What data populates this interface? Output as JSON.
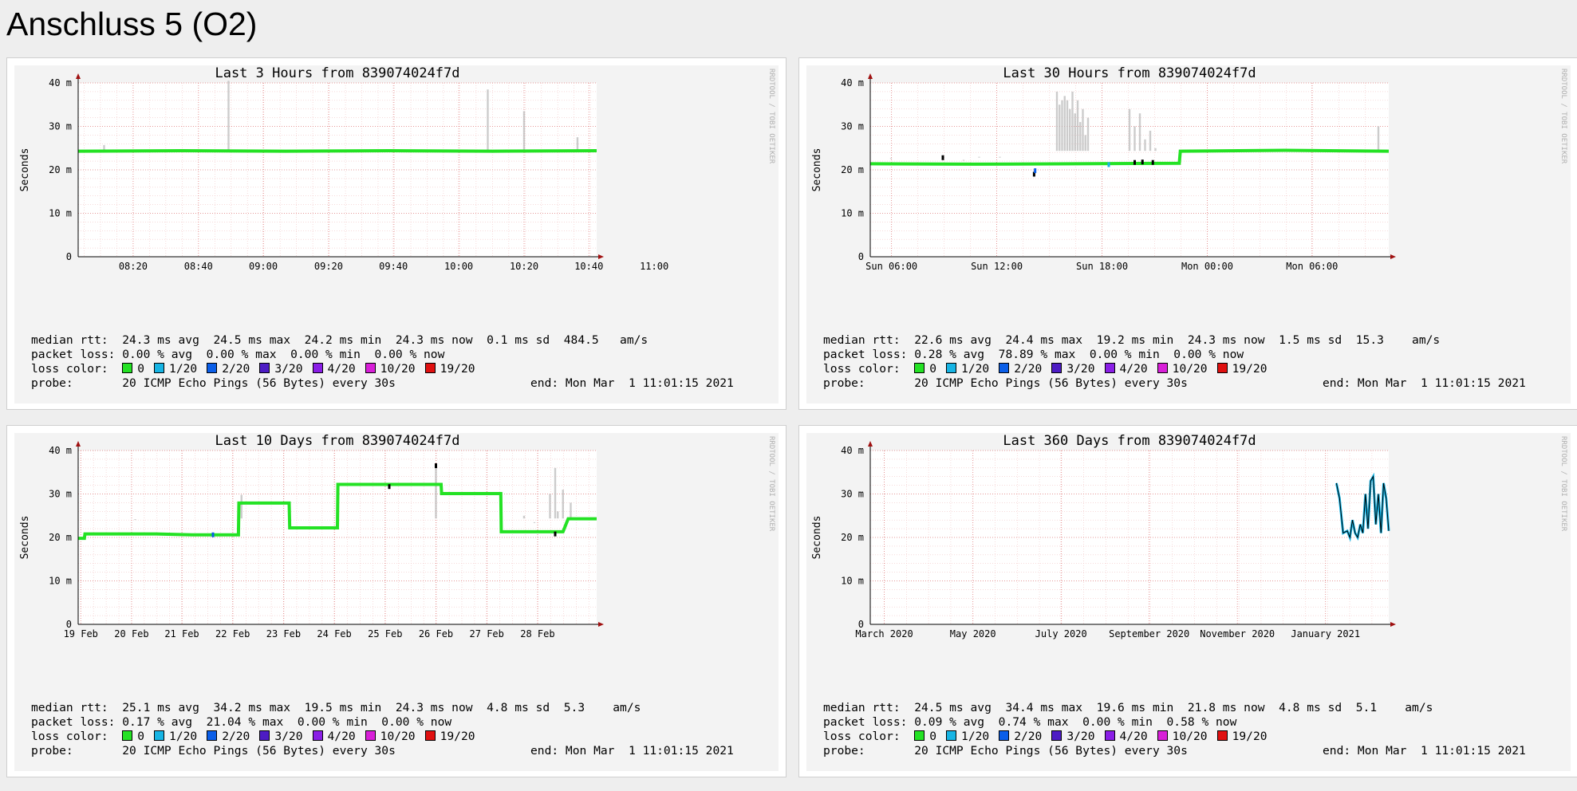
{
  "page": {
    "title": "Anschluss 5 (O2)"
  },
  "watermark": "RRDTOOL / TOBI OETIKER",
  "loss_colors": [
    {
      "label": "0",
      "color": "#24e224"
    },
    {
      "label": "1/20",
      "color": "#16b4e4"
    },
    {
      "label": "2/20",
      "color": "#0a5ee8"
    },
    {
      "label": "3/20",
      "color": "#4d1cc4"
    },
    {
      "label": "4/20",
      "color": "#8a1ee6"
    },
    {
      "label": "10/20",
      "color": "#d81fd8"
    },
    {
      "label": "19/20",
      "color": "#e01010"
    }
  ],
  "chart_data": [
    {
      "id": "3h",
      "type": "line",
      "title": "Last 3 Hours from 839074024f7d",
      "ylabel": "Seconds",
      "yticks": [
        "0",
        "10 m",
        "20 m",
        "30 m",
        "40 m"
      ],
      "ylim": [
        0,
        0.04
      ],
      "xticks": [
        "08:20",
        "08:40",
        "09:00",
        "09:20",
        "09:40",
        "10:00",
        "10:20",
        "10:40",
        "11:00"
      ],
      "x_tick_pos": [
        0.106,
        0.232,
        0.357,
        0.483,
        0.608,
        0.734,
        0.86,
        0.985,
        1.111
      ],
      "median_ms": [
        [
          0,
          24.3
        ],
        [
          0.2,
          24.4
        ],
        [
          0.4,
          24.3
        ],
        [
          0.6,
          24.4
        ],
        [
          0.8,
          24.3
        ],
        [
          1.0,
          24.4
        ]
      ],
      "spikes_ms": [
        [
          0.29,
          40.5
        ],
        [
          0.79,
          38.5
        ],
        [
          0.86,
          33.5
        ],
        [
          0.963,
          27.5
        ],
        [
          0.05,
          25.7
        ]
      ],
      "dots": [],
      "stats": {
        "median_rtt": "median rtt:  24.3 ms avg  24.5 ms max  24.2 ms min  24.3 ms now  0.1 ms sd  484.5   am/s",
        "packet_loss": "packet loss: 0.00 % avg  0.00 % max  0.00 % min  0.00 % now",
        "loss_color_label": "loss color:",
        "probe": "probe:       20 ICMP Echo Pings (56 Bytes) every 30s",
        "end": "end: Mon Mar  1 11:01:15 2021"
      }
    },
    {
      "id": "30h",
      "type": "line",
      "title": "Last 30 Hours from 839074024f7d",
      "ylabel": "Seconds",
      "yticks": [
        "0",
        "10 m",
        "20 m",
        "30 m",
        "40 m"
      ],
      "ylim": [
        0,
        0.04
      ],
      "xticks": [
        "Sun 06:00",
        "Sun 12:00",
        "Sun 18:00",
        "Mon 00:00",
        "Mon 06:00"
      ],
      "x_tick_pos": [
        0.041,
        0.244,
        0.447,
        0.65,
        0.852
      ],
      "median_ms": [
        [
          0,
          21.4
        ],
        [
          0.2,
          21.3
        ],
        [
          0.4,
          21.4
        ],
        [
          0.596,
          21.5
        ],
        [
          0.598,
          24.3
        ],
        [
          0.8,
          24.5
        ],
        [
          1.0,
          24.3
        ]
      ],
      "spikes_ms": [
        [
          0.36,
          38
        ],
        [
          0.365,
          35
        ],
        [
          0.37,
          36
        ],
        [
          0.375,
          37
        ],
        [
          0.38,
          36
        ],
        [
          0.385,
          34
        ],
        [
          0.39,
          38
        ],
        [
          0.395,
          33
        ],
        [
          0.4,
          36
        ],
        [
          0.405,
          31
        ],
        [
          0.41,
          34
        ],
        [
          0.415,
          28
        ],
        [
          0.42,
          32
        ],
        [
          0.5,
          34
        ],
        [
          0.51,
          30
        ],
        [
          0.52,
          33
        ],
        [
          0.53,
          27
        ],
        [
          0.54,
          29
        ],
        [
          0.55,
          25
        ],
        [
          0.21,
          23
        ],
        [
          0.04,
          22.7
        ],
        [
          0.18,
          22.3
        ],
        [
          0.14,
          23
        ],
        [
          0.25,
          23
        ],
        [
          0.98,
          30
        ]
      ],
      "dots": [
        [
          0.316,
          19.0,
          "#000000"
        ],
        [
          0.318,
          19.8,
          "#0a5ee8"
        ],
        [
          0.46,
          21.2,
          "#16b4e4"
        ],
        [
          0.51,
          21.7,
          "#000000"
        ],
        [
          0.525,
          21.8,
          "#000000"
        ],
        [
          0.545,
          21.7,
          "#000000"
        ],
        [
          0.14,
          22.8,
          "#000000"
        ]
      ],
      "stats": {
        "median_rtt": "median rtt:  22.6 ms avg  24.4 ms max  19.2 ms min  24.3 ms now  1.5 ms sd  15.3    am/s",
        "packet_loss": "packet loss: 0.28 % avg  78.89 % max  0.00 % min  0.00 % now",
        "loss_color_label": "loss color:",
        "probe": "probe:       20 ICMP Echo Pings (56 Bytes) every 30s",
        "end": "end: Mon Mar  1 11:01:15 2021"
      }
    },
    {
      "id": "10d",
      "type": "line",
      "title": "Last 10 Days from 839074024f7d",
      "ylabel": "Seconds",
      "yticks": [
        "0",
        "10 m",
        "20 m",
        "30 m",
        "40 m"
      ],
      "ylim": [
        0,
        0.04
      ],
      "xticks": [
        "19 Feb",
        "20 Feb",
        "21 Feb",
        "22 Feb",
        "23 Feb",
        "24 Feb",
        "25 Feb",
        "26 Feb",
        "27 Feb",
        "28 Feb"
      ],
      "x_tick_pos": [
        0.005,
        0.103,
        0.2,
        0.298,
        0.396,
        0.494,
        0.592,
        0.69,
        0.788,
        0.886
      ],
      "median_ms": [
        [
          0,
          19.8
        ],
        [
          0.012,
          19.8
        ],
        [
          0.013,
          20.8
        ],
        [
          0.15,
          20.8
        ],
        [
          0.22,
          20.6
        ],
        [
          0.309,
          20.6
        ],
        [
          0.31,
          27.9
        ],
        [
          0.407,
          27.9
        ],
        [
          0.408,
          22.2
        ],
        [
          0.5,
          22.2
        ],
        [
          0.501,
          32.2
        ],
        [
          0.7,
          32.2
        ],
        [
          0.701,
          30.1
        ],
        [
          0.815,
          30.1
        ],
        [
          0.816,
          21.3
        ],
        [
          0.935,
          21.3
        ],
        [
          0.945,
          24.3
        ],
        [
          1.0,
          24.3
        ]
      ],
      "spikes_ms": [
        [
          0.11,
          24.2
        ],
        [
          0.315,
          29.8
        ],
        [
          0.69,
          37
        ],
        [
          0.86,
          25
        ],
        [
          0.88,
          23.5
        ],
        [
          0.91,
          30
        ],
        [
          0.92,
          36
        ],
        [
          0.925,
          26
        ],
        [
          0.935,
          31
        ],
        [
          0.95,
          28
        ]
      ],
      "dots": [
        [
          0.69,
          36.5,
          "#000000"
        ],
        [
          0.6,
          31.7,
          "#000000"
        ],
        [
          0.26,
          20.6,
          "#0a5ee8"
        ],
        [
          0.92,
          20.8,
          "#000000"
        ]
      ],
      "stats": {
        "median_rtt": "median rtt:  25.1 ms avg  34.2 ms max  19.5 ms min  24.3 ms now  4.8 ms sd  5.3    am/s",
        "packet_loss": "packet loss: 0.17 % avg  21.04 % max  0.00 % min  0.00 % now",
        "loss_color_label": "loss color:",
        "probe": "probe:       20 ICMP Echo Pings (56 Bytes) every 30s",
        "end": "end: Mon Mar  1 11:01:15 2021"
      }
    },
    {
      "id": "360d",
      "type": "line",
      "title": "Last 360 Days from 839074024f7d",
      "ylabel": "Seconds",
      "yticks": [
        "0",
        "10 m",
        "20 m",
        "30 m",
        "40 m"
      ],
      "ylim": [
        0,
        0.04
      ],
      "xticks": [
        "March 2020",
        "May 2020",
        "July 2020",
        "September 2020",
        "November 2020",
        "January 2021"
      ],
      "x_tick_pos": [
        0.027,
        0.198,
        0.368,
        0.538,
        0.708,
        0.878
      ],
      "median_ms": [
        [
          0.899,
          32.5
        ],
        [
          0.905,
          29
        ],
        [
          0.912,
          21
        ],
        [
          0.92,
          21.5
        ],
        [
          0.925,
          20
        ],
        [
          0.93,
          24
        ],
        [
          0.935,
          21
        ],
        [
          0.94,
          20
        ],
        [
          0.945,
          23
        ],
        [
          0.95,
          21
        ],
        [
          0.955,
          30
        ],
        [
          0.96,
          22
        ],
        [
          0.965,
          33
        ],
        [
          0.97,
          34
        ],
        [
          0.975,
          23
        ],
        [
          0.98,
          30
        ],
        [
          0.985,
          21
        ],
        [
          0.99,
          32.5
        ],
        [
          0.995,
          29
        ],
        [
          1.0,
          21.5
        ]
      ],
      "spikes_ms": [],
      "dots": [],
      "stats": {
        "median_rtt": "median rtt:  24.5 ms avg  34.4 ms max  19.6 ms min  21.8 ms now  4.8 ms sd  5.1    am/s",
        "packet_loss": "packet loss: 0.09 % avg  0.74 % max  0.00 % min  0.58 % now",
        "loss_color_label": "loss color:",
        "probe": "probe:       20 ICMP Echo Pings (56 Bytes) every 30s",
        "end": "end: Mon Mar  1 11:01:15 2021"
      }
    }
  ]
}
